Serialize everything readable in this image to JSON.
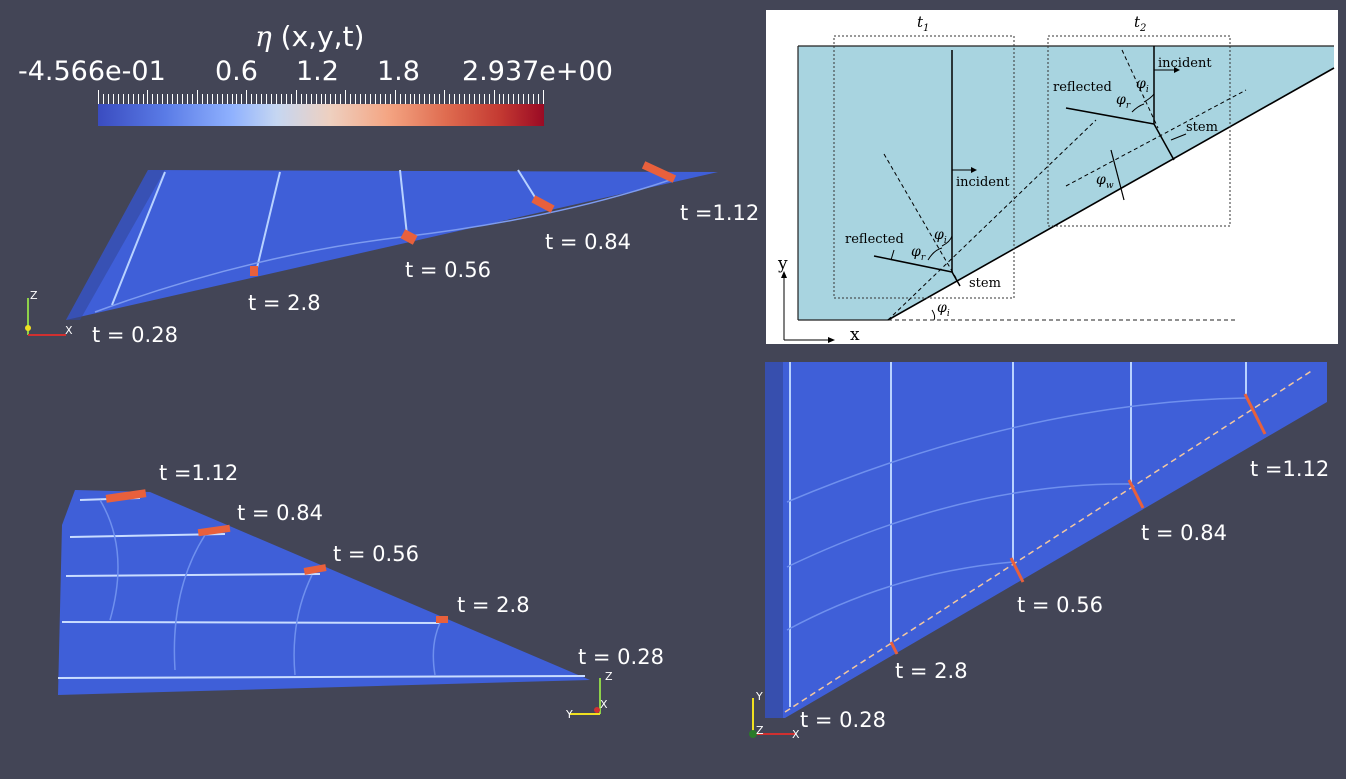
{
  "legend": {
    "title_symbol": "η",
    "title_rest": " (x,y,t)",
    "ticks": [
      "-4.566e-01",
      "0.6",
      "1.2",
      "1.8",
      "2.937e+00"
    ]
  },
  "panel_top_left": {
    "time_labels": [
      "t = 0.28",
      "t = 2.8",
      "t = 0.56",
      "t = 0.84",
      "t =1.12"
    ],
    "axes": [
      "Z",
      "X"
    ]
  },
  "panel_bottom_left": {
    "time_labels": [
      "t =1.12",
      "t = 0.84",
      "t = 0.56",
      "t = 2.8",
      "t = 0.28"
    ],
    "axes": [
      "Z",
      "Y",
      "X"
    ]
  },
  "panel_bottom_right": {
    "time_labels": [
      "t =1.12",
      "t = 0.84",
      "t = 0.56",
      "t = 2.8",
      "t = 0.28"
    ],
    "axes": [
      "Y",
      "Z",
      "X"
    ]
  },
  "diagram": {
    "t1": "t",
    "t1_sub": "1",
    "t2": "t",
    "t2_sub": "2",
    "incident": "incident",
    "reflected": "reflected",
    "stem": "stem",
    "phi_i": "φ",
    "phi_i_sub": "i",
    "phi_r": "φ",
    "phi_r_sub": "r",
    "phi_w": "φ",
    "phi_w_sub": "w",
    "axis_x": "x",
    "axis_y": "y"
  },
  "colors": {
    "background": "#434556",
    "basin": "#3f5fd8",
    "crest": "#b8d2ff",
    "stem_peak": "#e8603c",
    "diagram_water": "#a8d4e0"
  }
}
